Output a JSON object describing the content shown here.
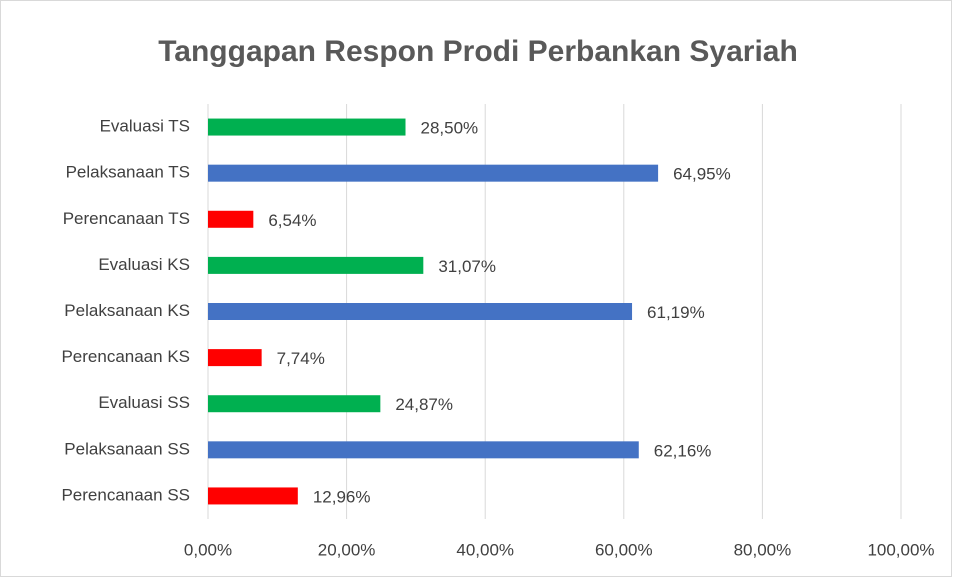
{
  "chart_data": {
    "type": "hbar",
    "title": "Tanggapan Respon Prodi Perbankan Syariah",
    "categories": [
      "Evaluasi TS",
      "Pelaksanaan TS",
      "Perencanaan TS",
      "Evaluasi KS",
      "Pelaksanaan KS",
      "Perencanaan KS",
      "Evaluasi SS",
      "Pelaksanaan SS",
      "Perencanaan SS"
    ],
    "values": [
      28.5,
      64.95,
      6.54,
      31.07,
      61.19,
      7.74,
      24.87,
      62.16,
      12.96
    ],
    "value_labels": [
      "28,50%",
      "64,95%",
      "6,54%",
      "31,07%",
      "61,19%",
      "7,74%",
      "24,87%",
      "62,16%",
      "12,96%"
    ],
    "colors": [
      "#00b050",
      "#4472c4",
      "#ff0000",
      "#00b050",
      "#4472c4",
      "#ff0000",
      "#00b050",
      "#4472c4",
      "#ff0000"
    ],
    "xlim": [
      0,
      100
    ],
    "xticks": [
      {
        "value": 0,
        "label": "0,00%"
      },
      {
        "value": 20,
        "label": "20,00%"
      },
      {
        "value": 40,
        "label": "40,00%"
      },
      {
        "value": 60,
        "label": "60,00%"
      },
      {
        "value": 80,
        "label": "80,00%"
      },
      {
        "value": 100,
        "label": "100,00%"
      }
    ],
    "grid": true
  }
}
